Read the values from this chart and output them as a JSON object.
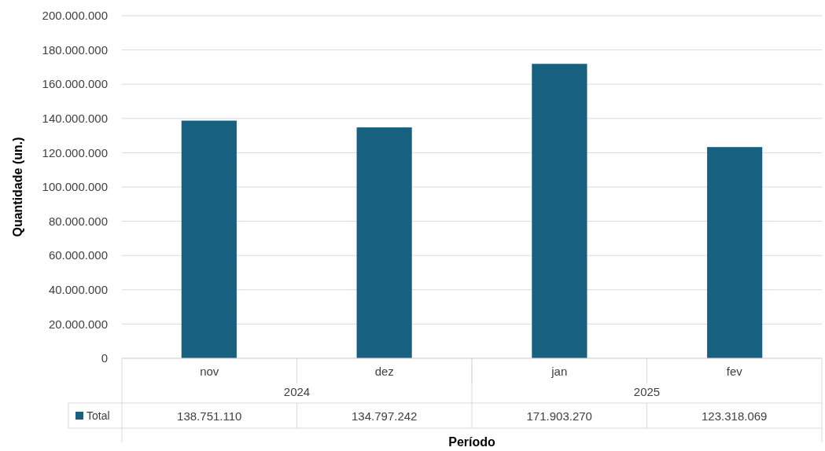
{
  "chart_data": {
    "type": "bar",
    "xlabel": "Período",
    "ylabel": "Quantidade (un.)",
    "categories": [
      "nov",
      "dez",
      "jan",
      "fev"
    ],
    "annotations": [
      "2024",
      "2025"
    ],
    "series": [
      {
        "name": "Total",
        "color": "#17607f",
        "values": [
          138751110,
          134797242,
          171903270,
          123318069
        ],
        "value_labels": [
          "138.751.110",
          "134.797.242",
          "171.903.270",
          "123.318.069"
        ]
      }
    ],
    "ylim": [
      0,
      200000000
    ],
    "yticks": [
      0,
      {
        "value": 20000000,
        "label": "20.000.000"
      },
      {
        "value": 40000000,
        "label": "40.000.000"
      },
      {
        "value": 60000000,
        "label": "60.000.000"
      },
      {
        "value": 80000000,
        "label": "80.000.000"
      },
      {
        "value": 100000000,
        "label": "100.000.000"
      },
      {
        "value": 120000000,
        "label": "120.000.000"
      },
      {
        "value": 140000000,
        "label": "140.000.000"
      },
      {
        "value": 160000000,
        "label": "160.000.000"
      },
      {
        "value": 180000000,
        "label": "180.000.000"
      },
      {
        "value": 200000000,
        "label": "200.000.000"
      }
    ],
    "grid": "y"
  }
}
